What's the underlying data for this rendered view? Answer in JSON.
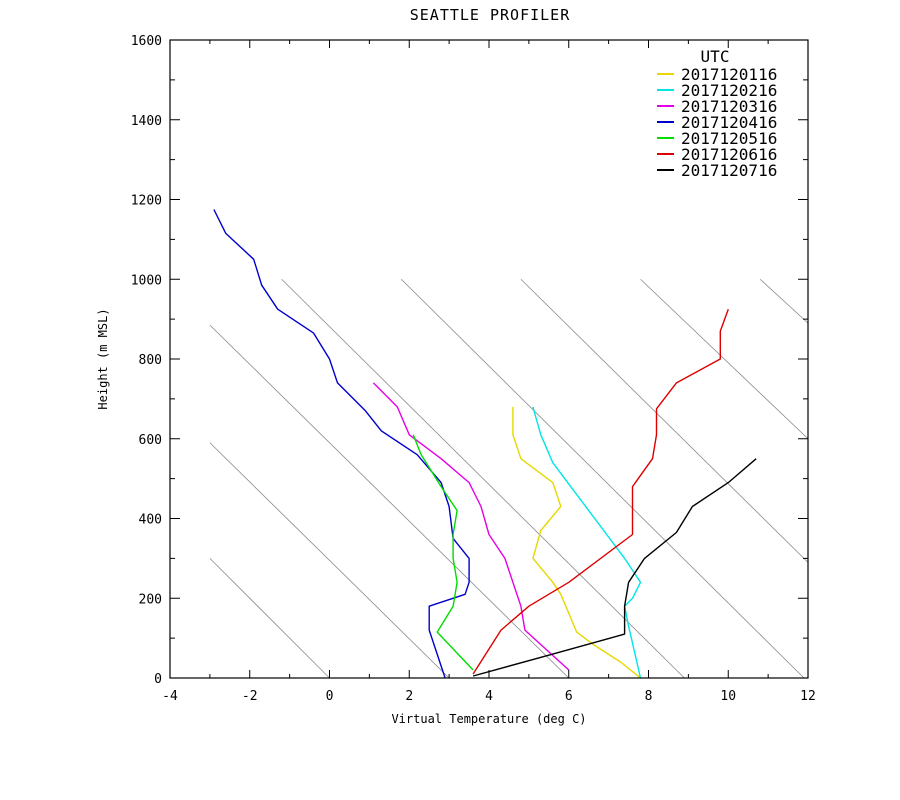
{
  "chart_data": {
    "type": "line",
    "title": "SEATTLE PROFILER",
    "xlabel": "Virtual Temperature (deg C)",
    "ylabel": "Height (m MSL)",
    "xlim": [
      -4,
      12
    ],
    "ylim": [
      0,
      1600
    ],
    "xticks": [
      -4,
      -2,
      0,
      2,
      4,
      6,
      8,
      10,
      12
    ],
    "xtick_labels": [
      "-4",
      "-2",
      "0",
      "2",
      "4",
      "6",
      "8",
      "10",
      "12"
    ],
    "yticks": [
      0,
      200,
      400,
      600,
      800,
      1000,
      1200,
      1400,
      1600
    ],
    "ytick_labels": [
      "0",
      "200",
      "400",
      "600",
      "800",
      "1000",
      "1200",
      "1400",
      "1600"
    ],
    "grid": false,
    "legend": {
      "title": "UTC",
      "position": "top-right"
    },
    "reference_lines": {
      "style": "diagonal thin gray",
      "lines": [
        {
          "x1": -3,
          "y1": 300,
          "x2": 0,
          "y2": 0
        },
        {
          "x1": -3,
          "y1": 590,
          "x2": 3,
          "y2": 0
        },
        {
          "x1": -3,
          "y1": 885,
          "x2": 6,
          "y2": 0
        },
        {
          "x1": -1.2,
          "y1": 1000,
          "x2": 8.9,
          "y2": 0
        },
        {
          "x1": 1.8,
          "y1": 1000,
          "x2": 11.9,
          "y2": 0
        },
        {
          "x1": 4.8,
          "y1": 1000,
          "x2": 12,
          "y2": 290
        },
        {
          "x1": 7.8,
          "y1": 1000,
          "x2": 12,
          "y2": 600
        },
        {
          "x1": 10.8,
          "y1": 1000,
          "x2": 12,
          "y2": 890
        }
      ]
    },
    "series": [
      {
        "name": "2017120116",
        "color": "#e6d800",
        "points": [
          [
            7.8,
            0
          ],
          [
            7.3,
            40
          ],
          [
            6.6,
            85
          ],
          [
            6.2,
            115
          ],
          [
            5.8,
            210
          ],
          [
            5.6,
            240
          ],
          [
            5.1,
            300
          ],
          [
            5.3,
            370
          ],
          [
            5.8,
            430
          ],
          [
            5.6,
            490
          ],
          [
            4.8,
            550
          ],
          [
            4.6,
            610
          ],
          [
            4.6,
            680
          ]
        ]
      },
      {
        "name": "2017120216",
        "color": "#00e5e5",
        "points": [
          [
            7.8,
            0
          ],
          [
            7.5,
            130
          ],
          [
            7.4,
            180
          ],
          [
            7.6,
            200
          ],
          [
            7.8,
            240
          ],
          [
            7.4,
            300
          ],
          [
            6.8,
            380
          ],
          [
            6.2,
            460
          ],
          [
            5.6,
            540
          ],
          [
            5.3,
            610
          ],
          [
            5.1,
            680
          ]
        ]
      },
      {
        "name": "2017120316",
        "color": "#e600e6",
        "points": [
          [
            6.0,
            20
          ],
          [
            4.9,
            120
          ],
          [
            4.8,
            180
          ],
          [
            4.4,
            300
          ],
          [
            4.0,
            360
          ],
          [
            3.8,
            430
          ],
          [
            3.5,
            490
          ],
          [
            2.8,
            550
          ],
          [
            2.0,
            610
          ],
          [
            1.7,
            680
          ],
          [
            1.1,
            740
          ]
        ]
      },
      {
        "name": "2017120416",
        "color": "#0000cc",
        "points": [
          [
            2.9,
            0
          ],
          [
            2.5,
            120
          ],
          [
            2.5,
            180
          ],
          [
            3.4,
            210
          ],
          [
            3.5,
            240
          ],
          [
            3.5,
            300
          ],
          [
            3.1,
            350
          ],
          [
            3.0,
            430
          ],
          [
            2.8,
            490
          ],
          [
            2.2,
            560
          ],
          [
            1.3,
            620
          ],
          [
            0.9,
            670
          ],
          [
            0.2,
            740
          ],
          [
            0.0,
            800
          ],
          [
            -0.4,
            865
          ],
          [
            -1.3,
            925
          ],
          [
            -1.7,
            985
          ],
          [
            -1.9,
            1050
          ],
          [
            -2.6,
            1115
          ],
          [
            -2.9,
            1175
          ]
        ]
      },
      {
        "name": "2017120516",
        "color": "#00dd00",
        "points": [
          [
            3.6,
            20
          ],
          [
            2.7,
            115
          ],
          [
            3.1,
            180
          ],
          [
            3.2,
            240
          ],
          [
            3.1,
            300
          ],
          [
            3.1,
            360
          ],
          [
            3.2,
            420
          ],
          [
            2.8,
            480
          ],
          [
            2.3,
            560
          ],
          [
            2.1,
            610
          ]
        ]
      },
      {
        "name": "2017120616",
        "color": "#dd0000",
        "points": [
          [
            3.6,
            10
          ],
          [
            4.3,
            120
          ],
          [
            5.0,
            180
          ],
          [
            6.0,
            240
          ],
          [
            7.6,
            360
          ],
          [
            7.6,
            400
          ],
          [
            7.6,
            480
          ],
          [
            8.1,
            550
          ],
          [
            8.2,
            610
          ],
          [
            8.2,
            675
          ],
          [
            8.7,
            740
          ],
          [
            9.8,
            800
          ],
          [
            9.8,
            870
          ],
          [
            10.0,
            925
          ]
        ]
      },
      {
        "name": "2017120716",
        "color": "#000000",
        "points": [
          [
            3.6,
            5
          ],
          [
            5.6,
            60
          ],
          [
            7.4,
            110
          ],
          [
            7.4,
            180
          ],
          [
            7.5,
            240
          ],
          [
            7.9,
            300
          ],
          [
            8.7,
            365
          ],
          [
            9.1,
            430
          ],
          [
            10.0,
            490
          ],
          [
            10.7,
            550
          ]
        ]
      }
    ]
  }
}
